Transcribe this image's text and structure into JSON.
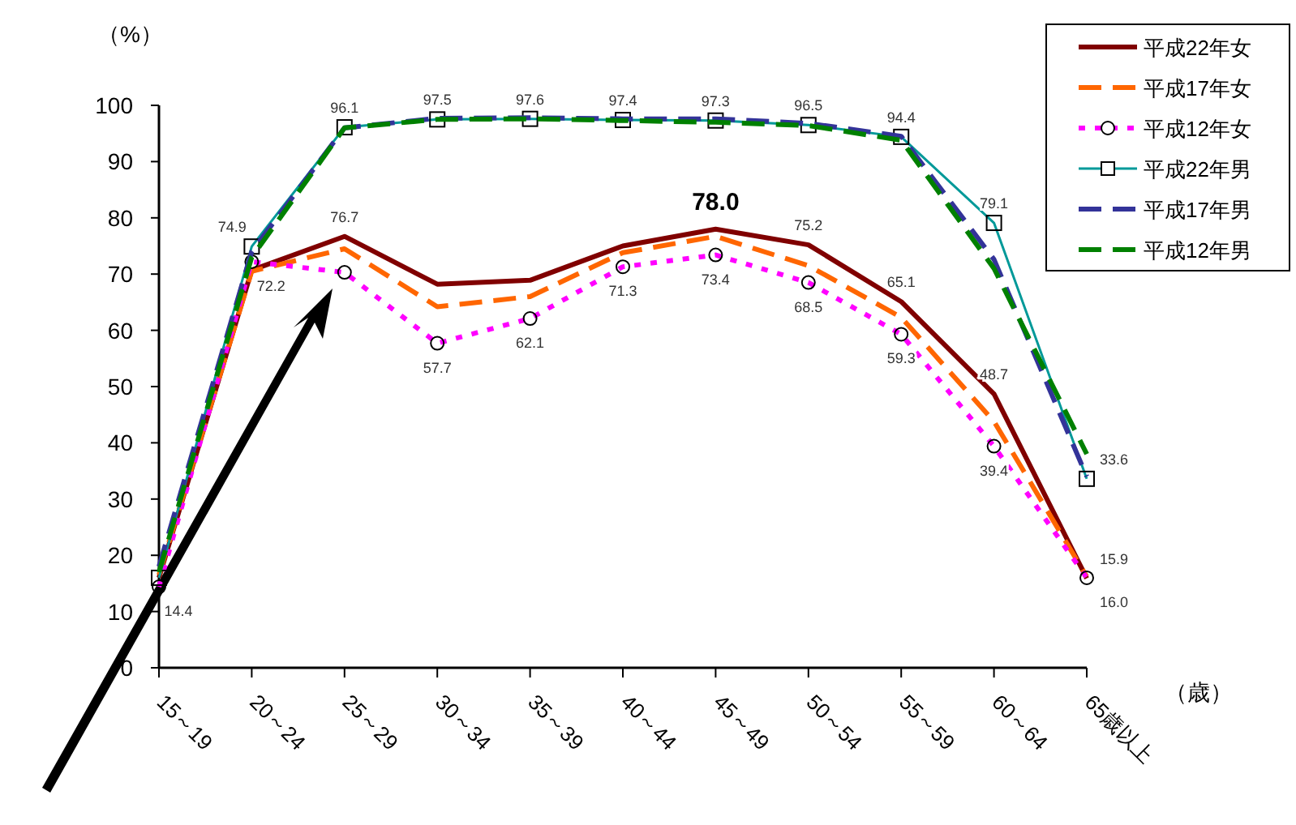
{
  "chart_data": {
    "type": "line",
    "ylabel": "（%）",
    "xlabel": "（歳）",
    "categories": [
      "15～19",
      "20～24",
      "25～29",
      "30～34",
      "35～39",
      "40～44",
      "45～49",
      "50～54",
      "55～59",
      "60～64",
      "65歳以上"
    ],
    "ylim": [
      0,
      100
    ],
    "yticks": [
      0,
      10,
      20,
      30,
      40,
      50,
      60,
      70,
      80,
      90,
      100
    ],
    "grid": false,
    "legend": "top right",
    "series": [
      {
        "name": "平成22年女",
        "color": "#800000",
        "line_style": "solid",
        "marker": "none",
        "values": [
          16.0,
          70.7,
          76.7,
          68.2,
          68.9,
          75.0,
          78.0,
          75.2,
          65.1,
          48.7,
          15.9
        ],
        "value_labels": [
          null,
          null,
          "76.7",
          null,
          null,
          null,
          null,
          "75.2",
          "65.1",
          "48.7",
          "15.9"
        ]
      },
      {
        "name": "平成17年女",
        "color": "#ff6600",
        "line_style": "dashed",
        "marker": "none",
        "values": [
          16.5,
          70.5,
          74.5,
          64.2,
          66.0,
          73.8,
          76.7,
          71.5,
          62.3,
          43.8,
          16.2
        ]
      },
      {
        "name": "平成12年女",
        "color": "#ff00ff",
        "line_style": "dotted",
        "marker": "circle",
        "values": [
          14.4,
          72.2,
          70.3,
          57.7,
          62.1,
          71.3,
          73.4,
          68.5,
          59.3,
          39.4,
          16.0
        ],
        "value_labels": [
          "14.4",
          "72.2",
          null,
          "57.7",
          "62.1",
          "71.3",
          "73.4",
          "68.5",
          "59.3",
          "39.4",
          "16.0"
        ]
      },
      {
        "name": "平成22年男",
        "color": "#009999",
        "line_style": "solid",
        "marker": "square",
        "values": [
          16.0,
          74.9,
          96.1,
          97.5,
          97.6,
          97.4,
          97.3,
          96.5,
          94.4,
          79.1,
          33.6
        ],
        "value_labels": [
          null,
          "74.9",
          "96.1",
          "97.5",
          "97.6",
          "97.4",
          "97.3",
          "96.5",
          "94.4",
          "79.1",
          "33.6"
        ]
      },
      {
        "name": "平成17年男",
        "color": "#333399",
        "line_style": "dashed",
        "marker": "none",
        "values": [
          18.0,
          74.0,
          96.0,
          97.7,
          97.8,
          97.6,
          97.6,
          96.8,
          94.5,
          72.6,
          34.0
        ]
      },
      {
        "name": "平成12年男",
        "color": "#008000",
        "line_style": "dashed",
        "marker": "none",
        "values": [
          17.0,
          73.0,
          96.0,
          97.5,
          97.6,
          97.3,
          97.0,
          96.4,
          93.8,
          71.0,
          38.0
        ]
      }
    ],
    "annotations": [
      {
        "text": "78.0",
        "x": "45～49",
        "y": 78.0
      }
    ]
  }
}
